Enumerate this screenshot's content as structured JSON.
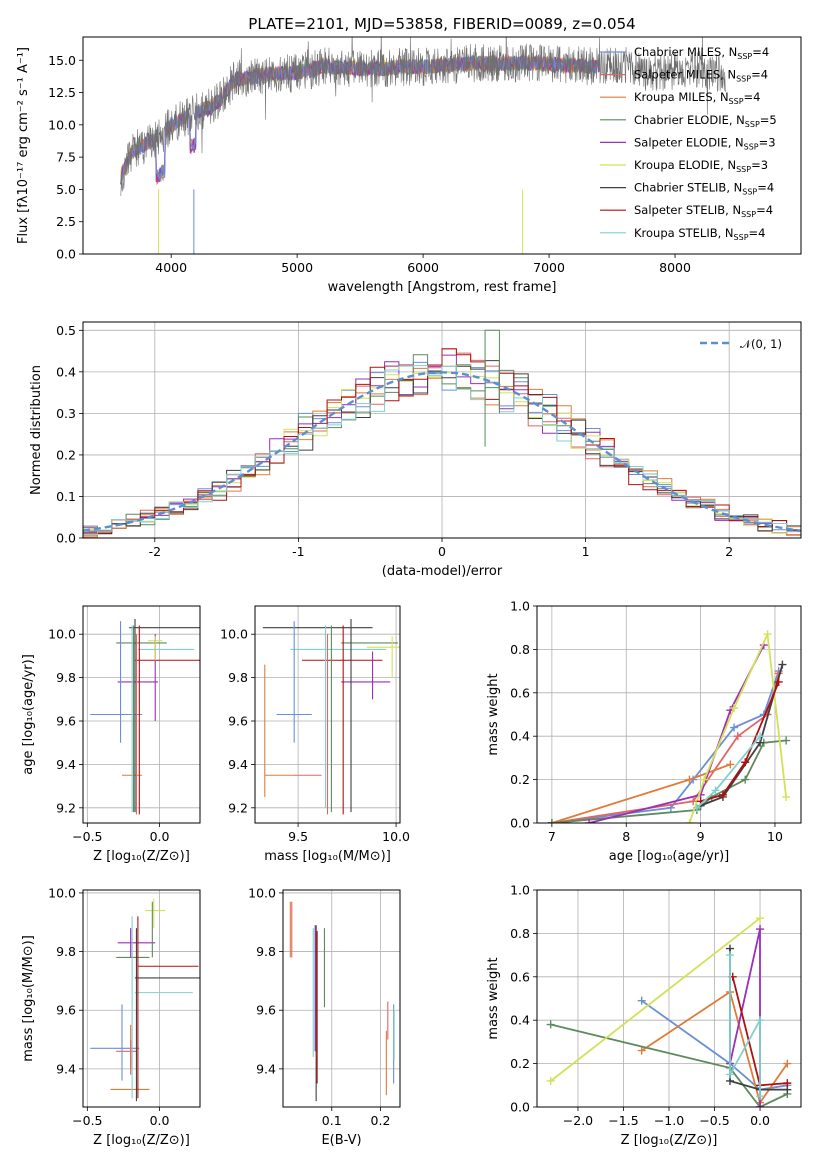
{
  "colors": [
    "#6a8fd8",
    "#e06666",
    "#e07b39",
    "#5e8a5e",
    "#9b2fb8",
    "#d4e157",
    "#404040",
    "#b01010",
    "#80d0d0"
  ],
  "legend_labels": [
    [
      "Chabrier MILES, N",
      "SSP",
      "=4"
    ],
    [
      "Salpeter MILES, N",
      "SSP",
      "=4"
    ],
    [
      "Kroupa MILES, N",
      "SSP",
      "=4"
    ],
    [
      "Chabrier ELODIE, N",
      "SSP",
      "=5"
    ],
    [
      "Salpeter ELODIE, N",
      "SSP",
      "=3"
    ],
    [
      "Kroupa ELODIE, N",
      "SSP",
      "=3"
    ],
    [
      "Chabrier STELIB, N",
      "SSP",
      "=4"
    ],
    [
      "Salpeter STELIB, N",
      "SSP",
      "=4"
    ],
    [
      "Kroupa STELIB, N",
      "SSP",
      "=4"
    ]
  ],
  "chart_data": [
    {
      "id": "spectrum",
      "type": "line",
      "title": "PLATE=2101, MJD=53858, FIBERID=0089, z=0.054",
      "xlabel": "wavelength [Angstrom, rest frame]",
      "ylabel": "Flux [fλ10⁻¹⁷ erg cm⁻² s⁻¹ A⁻¹]",
      "xlim": [
        3300,
        9000
      ],
      "ylim": [
        0,
        16.8
      ],
      "xticks": [
        4000,
        5000,
        6000,
        7000,
        8000
      ],
      "yticks": [
        0.0,
        2.5,
        5.0,
        7.5,
        10.0,
        12.5,
        15.0
      ],
      "continuum": [
        [
          3600,
          6.0
        ],
        [
          3700,
          8.0
        ],
        [
          3800,
          8.5
        ],
        [
          3900,
          9.0
        ],
        [
          4000,
          10.0
        ],
        [
          4100,
          10.5
        ],
        [
          4200,
          11.0
        ],
        [
          4300,
          11.3
        ],
        [
          4400,
          12.0
        ],
        [
          4500,
          13.5
        ],
        [
          4700,
          13.8
        ],
        [
          4900,
          14.0
        ],
        [
          5000,
          14.0
        ],
        [
          5200,
          14.5
        ],
        [
          5400,
          14.4
        ],
        [
          5600,
          14.3
        ],
        [
          5800,
          14.5
        ],
        [
          6000,
          14.5
        ],
        [
          6200,
          14.6
        ],
        [
          6400,
          14.8
        ],
        [
          6600,
          14.7
        ],
        [
          6800,
          14.8
        ],
        [
          7000,
          14.7
        ],
        [
          7200,
          14.6
        ],
        [
          7400,
          14.5
        ],
        [
          7600,
          14.6
        ],
        [
          7800,
          14.0
        ],
        [
          8000,
          14.2
        ],
        [
          8200,
          14.3
        ],
        [
          8500,
          13.8
        ]
      ],
      "models_end": 7400,
      "data_end": 8400
    },
    {
      "id": "residuals",
      "type": "histogram",
      "xlabel": "(data-model)/error",
      "ylabel": "Normed distribution",
      "xlim": [
        -2.5,
        2.5
      ],
      "ylim": [
        0,
        0.52
      ],
      "xticks": [
        -2,
        -1,
        0,
        1,
        2
      ],
      "yticks": [
        0.0,
        0.1,
        0.2,
        0.3,
        0.4,
        0.5
      ],
      "legend": "𝒩(0, 1)",
      "bin_width": 0.1,
      "peak_values": [
        0.42,
        0.4,
        0.41,
        0.38,
        0.5,
        0.47,
        0.39,
        0.45,
        0.38
      ]
    },
    {
      "id": "age-vs-z",
      "type": "errorbar",
      "xlabel": "Z [log₁₀(Z/Z⊙)]",
      "ylabel": "age  [log₁₀(age/yr)]",
      "xlim": [
        -0.53,
        0.28
      ],
      "ylim": [
        9.13,
        10.13
      ],
      "xticks": [
        -0.5,
        0.0
      ],
      "xticklabels": [
        "−0.5",
        "0.0"
      ],
      "yticks": [
        9.2,
        9.4,
        9.6,
        9.8,
        10.0
      ],
      "points": [
        {
          "x": -0.2,
          "y": 9.63,
          "xe": 0.18,
          "ye": 0.27
        },
        {
          "x": -0.17,
          "y": 9.35,
          "xe": 0.01,
          "ye": 0.02
        },
        {
          "x": -0.2,
          "y": 9.35,
          "xe": 0.07,
          "ye": 0.0
        },
        {
          "x": -0.14,
          "y": 9.96,
          "xe": 0.15,
          "ye": 0.05
        },
        {
          "x": -0.03,
          "y": 9.78,
          "xe": 0.0,
          "ye": 0.15
        },
        {
          "x": -0.03,
          "y": 9.96,
          "xe": 0.0,
          "ye": 0.05
        },
        {
          "x": -0.17,
          "y": 10.03,
          "xe": 0.0,
          "ye": 0.85
        },
        {
          "x": -0.14,
          "y": 9.88,
          "xe": 0.0,
          "ye": 0.9
        },
        {
          "x": -0.19,
          "y": 9.93,
          "xe": 0.0,
          "ye": 0.2
        }
      ],
      "hbars": [
        {
          "c": 0,
          "y": 9.63,
          "x0": -0.48,
          "x1": -0.12
        },
        {
          "c": 2,
          "y": 9.35,
          "x0": -0.26,
          "x1": -0.12
        },
        {
          "c": 4,
          "y": 9.78,
          "x0": -0.29,
          "x1": -0.01
        },
        {
          "c": 3,
          "y": 9.96,
          "x0": -0.3,
          "x1": 0.05
        },
        {
          "c": 8,
          "y": 9.93,
          "x0": -0.15,
          "x1": 0.24
        },
        {
          "c": 7,
          "y": 9.88,
          "x0": -0.17,
          "x1": 0.28
        },
        {
          "c": 6,
          "y": 10.03,
          "x0": -0.21,
          "x1": 0.28
        },
        {
          "c": 5,
          "y": 9.97,
          "x0": -0.08,
          "x1": 0.02
        }
      ],
      "vbars": [
        {
          "c": 0,
          "x": -0.27,
          "y0": 9.5,
          "y1": 10.06
        },
        {
          "c": 4,
          "x": -0.03,
          "y0": 9.6,
          "y1": 10.0
        },
        {
          "c": 5,
          "x": -0.03,
          "y0": 9.88,
          "y1": 9.99
        },
        {
          "c": 8,
          "x": -0.19,
          "y0": 9.18,
          "y1": 10.04
        },
        {
          "c": 3,
          "x": -0.18,
          "y0": 9.18,
          "y1": 10.04
        },
        {
          "c": 6,
          "x": -0.17,
          "y0": 9.18,
          "y1": 10.07
        },
        {
          "c": 7,
          "x": -0.14,
          "y0": 9.17,
          "y1": 10.04
        },
        {
          "c": 1,
          "x": -0.16,
          "y0": 9.17,
          "y1": 10.0
        }
      ]
    },
    {
      "id": "age-vs-mass",
      "type": "errorbar",
      "xlabel": "mass [log₁₀(M/M⊙)]",
      "xlim": [
        9.28,
        10.02
      ],
      "ylim": [
        9.13,
        10.13
      ],
      "xticks": [
        9.5,
        10.0
      ],
      "xticklabels": [
        "9.5",
        "10.0"
      ],
      "yticks": [
        9.2,
        9.4,
        9.6,
        9.8,
        10.0
      ],
      "hbars": [
        {
          "c": 0,
          "y": 9.63,
          "x0": 9.39,
          "x1": 9.57
        },
        {
          "c": 2,
          "y": 9.35,
          "x0": 9.33,
          "x1": 9.47
        },
        {
          "c": 1,
          "y": 9.35,
          "x0": 9.47,
          "x1": 9.62
        },
        {
          "c": 4,
          "y": 9.78,
          "x0": 9.72,
          "x1": 9.97
        },
        {
          "c": 3,
          "y": 9.96,
          "x0": 9.72,
          "x1": 10.01
        },
        {
          "c": 8,
          "y": 9.93,
          "x0": 9.46,
          "x1": 9.95
        },
        {
          "c": 7,
          "y": 9.88,
          "x0": 9.52,
          "x1": 9.93
        },
        {
          "c": 6,
          "y": 10.03,
          "x0": 9.32,
          "x1": 9.88
        },
        {
          "c": 5,
          "y": 9.94,
          "x0": 9.85,
          "x1": 10.02
        }
      ],
      "vbars": [
        {
          "c": 0,
          "x": 9.48,
          "y0": 9.5,
          "y1": 10.06
        },
        {
          "c": 2,
          "x": 9.33,
          "y0": 9.25,
          "y1": 9.86
        },
        {
          "c": 4,
          "x": 9.88,
          "y0": 9.7,
          "y1": 9.92
        },
        {
          "c": 5,
          "x": 9.98,
          "y0": 9.8,
          "y1": 9.99
        },
        {
          "c": 8,
          "x": 9.64,
          "y0": 9.2,
          "y1": 10.04
        },
        {
          "c": 3,
          "x": 9.67,
          "y0": 9.18,
          "y1": 10.04
        },
        {
          "c": 6,
          "x": 9.77,
          "y0": 9.18,
          "y1": 10.07
        },
        {
          "c": 7,
          "x": 9.73,
          "y0": 9.17,
          "y1": 10.04
        },
        {
          "c": 1,
          "x": 9.65,
          "y0": 9.17,
          "y1": 10.0
        }
      ]
    },
    {
      "id": "weight-vs-age",
      "type": "line",
      "xlabel": "age  [log₁₀(age/yr)]",
      "ylabel": "mass weight",
      "xlim": [
        6.8,
        10.35
      ],
      "ylim": [
        0,
        1.0
      ],
      "xticks": [
        7,
        8,
        9,
        10
      ],
      "yticks": [
        0.0,
        0.2,
        0.4,
        0.6,
        0.8,
        1.0
      ],
      "series": [
        {
          "c": 0,
          "points": [
            [
              7.0,
              0.0
            ],
            [
              8.6,
              0.07
            ],
            [
              8.9,
              0.2
            ],
            [
              9.45,
              0.44
            ],
            [
              9.85,
              0.5
            ],
            [
              10.05,
              0.7
            ]
          ]
        },
        {
          "c": 1,
          "points": [
            [
              7.0,
              0.0
            ],
            [
              8.9,
              0.1
            ],
            [
              9.5,
              0.4
            ],
            [
              9.9,
              0.5
            ],
            [
              10.05,
              0.69
            ]
          ]
        },
        {
          "c": 2,
          "points": [
            [
              7.0,
              0.0
            ],
            [
              8.85,
              0.2
            ],
            [
              9.4,
              0.27
            ]
          ]
        },
        {
          "c": 3,
          "points": [
            [
              7.0,
              0.0
            ],
            [
              8.95,
              0.06
            ],
            [
              9.15,
              0.12
            ],
            [
              9.6,
              0.2
            ],
            [
              9.85,
              0.37
            ],
            [
              10.15,
              0.38
            ]
          ]
        },
        {
          "c": 4,
          "points": [
            [
              7.5,
              0.0
            ],
            [
              9.0,
              0.13
            ],
            [
              9.4,
              0.52
            ],
            [
              9.85,
              0.82
            ]
          ]
        },
        {
          "c": 5,
          "points": [
            [
              8.85,
              0.0
            ],
            [
              9.05,
              0.2
            ],
            [
              9.45,
              0.53
            ],
            [
              9.9,
              0.87
            ],
            [
              10.15,
              0.12
            ]
          ]
        },
        {
          "c": 6,
          "points": [
            [
              9.0,
              0.08
            ],
            [
              9.3,
              0.12
            ],
            [
              9.8,
              0.37
            ],
            [
              10.1,
              0.73
            ]
          ]
        },
        {
          "c": 7,
          "points": [
            [
              9.0,
              0.1
            ],
            [
              9.3,
              0.13
            ],
            [
              9.6,
              0.28
            ],
            [
              10.05,
              0.65
            ]
          ]
        },
        {
          "c": 8,
          "points": [
            [
              8.95,
              0.07
            ],
            [
              9.2,
              0.15
            ],
            [
              9.8,
              0.4
            ]
          ]
        }
      ]
    },
    {
      "id": "mass-vs-z",
      "type": "errorbar",
      "xlabel": "Z [log₁₀(Z/Z⊙)]",
      "ylabel": "mass [log₁₀(M/M⊙)]",
      "xlim": [
        -0.53,
        0.28
      ],
      "ylim": [
        9.27,
        10.01
      ],
      "xticks": [
        -0.5,
        0.0
      ],
      "xticklabels": [
        "−0.5",
        "0.0"
      ],
      "yticks": [
        9.4,
        9.6,
        9.8,
        10.0
      ],
      "hbars": [
        {
          "c": 0,
          "y": 9.47,
          "x0": -0.48,
          "x1": -0.14
        },
        {
          "c": 1,
          "y": 9.46,
          "x0": -0.3,
          "x1": -0.16
        },
        {
          "c": 2,
          "y": 9.33,
          "x0": -0.34,
          "x1": -0.07
        },
        {
          "c": 4,
          "y": 9.83,
          "x0": -0.29,
          "x1": -0.03
        },
        {
          "c": 3,
          "y": 9.78,
          "x0": -0.3,
          "x1": -0.07
        },
        {
          "c": 8,
          "y": 9.66,
          "x0": -0.17,
          "x1": 0.23
        },
        {
          "c": 7,
          "y": 9.75,
          "x0": -0.15,
          "x1": 0.27
        },
        {
          "c": 6,
          "y": 9.71,
          "x0": -0.17,
          "x1": 0.28
        },
        {
          "c": 5,
          "y": 9.94,
          "x0": -0.1,
          "x1": 0.04
        }
      ],
      "vbars": [
        {
          "c": 0,
          "x": -0.26,
          "y0": 9.36,
          "y1": 9.62
        },
        {
          "c": 2,
          "x": -0.2,
          "y0": 9.4,
          "y1": 9.55
        },
        {
          "c": 4,
          "x": -0.2,
          "y0": 9.78,
          "y1": 9.88
        },
        {
          "c": 3,
          "x": -0.05,
          "y0": 9.78,
          "y1": 9.97
        },
        {
          "c": 5,
          "x": -0.04,
          "y0": 9.88,
          "y1": 9.98
        },
        {
          "c": 8,
          "x": -0.19,
          "y0": 9.3,
          "y1": 9.92
        },
        {
          "c": 6,
          "x": -0.16,
          "y0": 9.29,
          "y1": 9.88
        },
        {
          "c": 7,
          "x": -0.15,
          "y0": 9.3,
          "y1": 9.92
        },
        {
          "c": 1,
          "x": -0.2,
          "y0": 9.38,
          "y1": 9.5
        }
      ]
    },
    {
      "id": "mass-vs-ebv",
      "type": "errorbar",
      "xlabel": "E(B-V)",
      "xlim": [
        0.0,
        0.24
      ],
      "ylim": [
        9.27,
        10.01
      ],
      "xticks": [
        0.1,
        0.2
      ],
      "xticklabels": [
        "0.1",
        "0.2"
      ],
      "yticks": [
        9.4,
        9.6,
        9.8,
        10.0
      ],
      "vbars": [
        {
          "c": 2,
          "x": 0.015,
          "y0": 9.78,
          "y1": 9.97
        },
        {
          "c": 1,
          "x": 0.018,
          "y0": 9.78,
          "y1": 9.97
        },
        {
          "c": 4,
          "x": 0.066,
          "y0": 9.46,
          "y1": 9.89
        },
        {
          "c": 8,
          "x": 0.062,
          "y0": 9.44,
          "y1": 9.88
        },
        {
          "c": 6,
          "x": 0.068,
          "y0": 9.29,
          "y1": 9.89
        },
        {
          "c": 7,
          "x": 0.07,
          "y0": 9.35,
          "y1": 9.87
        },
        {
          "c": 3,
          "x": 0.085,
          "y0": 9.61,
          "y1": 9.88
        },
        {
          "c": 2,
          "x": 0.212,
          "y0": 9.31,
          "y1": 9.53
        },
        {
          "c": 1,
          "x": 0.215,
          "y0": 9.5,
          "y1": 9.63
        },
        {
          "c": 0,
          "x": 0.227,
          "y0": 9.35,
          "y1": 9.62
        },
        {
          "c": 8,
          "x": 0.228,
          "y0": 9.43,
          "y1": 9.6
        }
      ]
    },
    {
      "id": "weight-vs-z",
      "type": "line",
      "xlabel": "Z [log₁₀(Z/Z⊙)]",
      "ylabel": "mass weight",
      "xlim": [
        -2.45,
        0.45
      ],
      "ylim": [
        0,
        1.0
      ],
      "xticks": [
        -2.0,
        -1.5,
        -1.0,
        -0.5,
        0.0
      ],
      "xticklabels": [
        "−2.0",
        "−1.5",
        "−1.0",
        "−0.5",
        "0.0"
      ],
      "yticks": [
        0.0,
        0.2,
        0.4,
        0.6,
        0.8,
        1.0
      ],
      "series": [
        {
          "c": 0,
          "points": [
            [
              -1.3,
              0.49
            ],
            [
              -0.33,
              0.2
            ],
            [
              0.0,
              0.08
            ],
            [
              0.3,
              0.1
            ]
          ]
        },
        {
          "c": 2,
          "points": [
            [
              -1.3,
              0.26
            ],
            [
              -0.33,
              0.53
            ],
            [
              0.0,
              0.02
            ],
            [
              0.3,
              0.2
            ]
          ]
        },
        {
          "c": 3,
          "points": [
            [
              -2.3,
              0.38
            ],
            [
              -0.33,
              0.18
            ],
            [
              0.0,
              0.0
            ],
            [
              0.3,
              0.06
            ]
          ]
        },
        {
          "c": 4,
          "points": [
            [
              -0.33,
              0.2
            ],
            [
              0.0,
              0.82
            ],
            [
              0.0,
              0.0
            ]
          ]
        },
        {
          "c": 5,
          "points": [
            [
              -2.3,
              0.12
            ],
            [
              0.0,
              0.87
            ]
          ]
        },
        {
          "c": 6,
          "points": [
            [
              -0.33,
              0.73
            ],
            [
              -0.33,
              0.12
            ],
            [
              0.0,
              0.08
            ],
            [
              0.3,
              0.08
            ]
          ]
        },
        {
          "c": 7,
          "points": [
            [
              -0.3,
              0.6
            ],
            [
              0.0,
              0.1
            ],
            [
              0.3,
              0.11
            ]
          ]
        },
        {
          "c": 8,
          "points": [
            [
              -0.33,
              0.7
            ],
            [
              -0.33,
              0.15
            ],
            [
              0.0,
              0.4
            ],
            [
              0.0,
              0.05
            ]
          ]
        }
      ]
    }
  ]
}
